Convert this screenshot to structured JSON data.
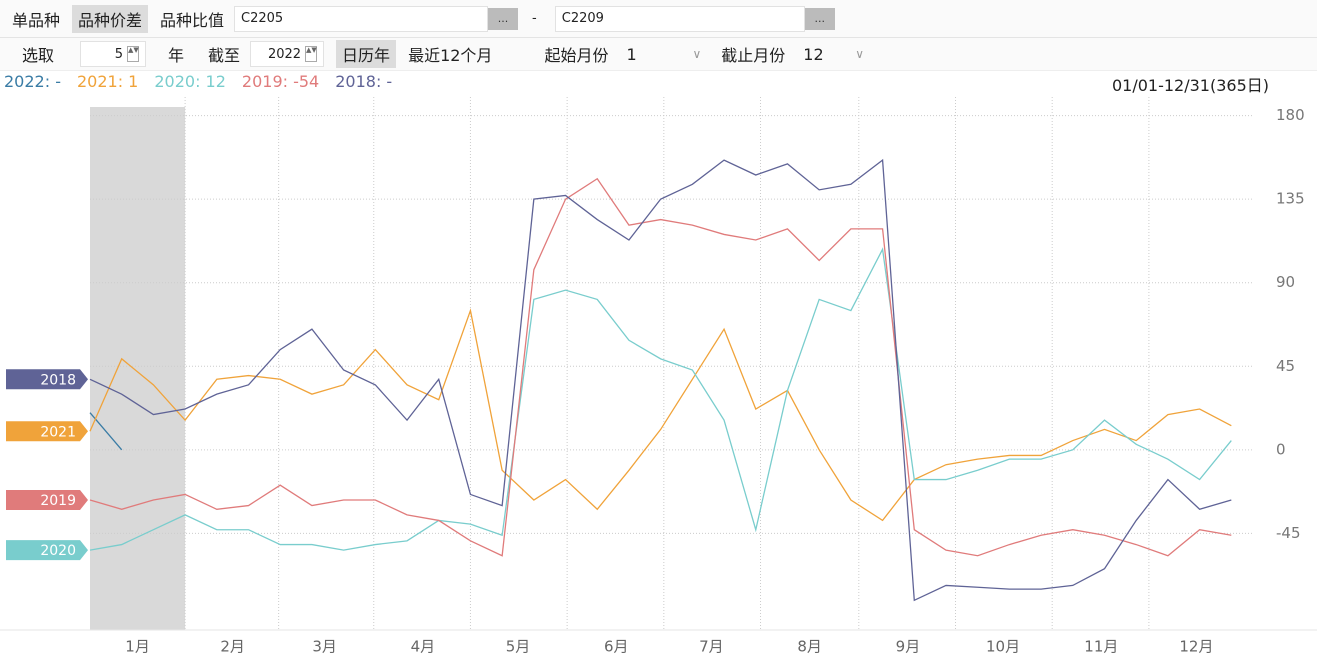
{
  "toolbar": {
    "tabs": [
      "单品种",
      "品种价差",
      "品种比值"
    ],
    "code1": "C2205",
    "more": "...",
    "dash": "-",
    "code2": "C2209",
    "select_label": "选取",
    "years": "5",
    "year_unit": "年",
    "until_label": "截至",
    "until_year": "2022",
    "calendar": "日历年",
    "recent": "最近12个月",
    "start_month_label": "起始月份",
    "start_month": "1",
    "end_month_label": "截止月份",
    "end_month": "12"
  },
  "chart_data": {
    "type": "line",
    "legend_labels": [
      "2022: -",
      "2021: 1",
      "2020: 12",
      "2019: -54",
      "2018: -"
    ],
    "range_label": "01/01-12/31(365日)",
    "x": [
      1,
      11,
      21,
      31,
      41,
      51,
      61,
      71,
      81,
      91,
      101,
      111,
      121,
      131,
      141,
      151,
      161,
      171,
      181,
      191,
      201,
      211,
      221,
      231,
      241,
      251,
      261,
      271,
      281,
      291,
      301,
      311,
      321,
      331,
      341,
      351,
      361
    ],
    "xlim": [
      1,
      365
    ],
    "xticks": [
      {
        "value": 16,
        "label": "1月"
      },
      {
        "value": 46,
        "label": "2月"
      },
      {
        "value": 75,
        "label": "3月"
      },
      {
        "value": 106,
        "label": "4月"
      },
      {
        "value": 136,
        "label": "5月"
      },
      {
        "value": 167,
        "label": "6月"
      },
      {
        "value": 197,
        "label": "7月"
      },
      {
        "value": 228,
        "label": "8月"
      },
      {
        "value": 259,
        "label": "9月"
      },
      {
        "value": 289,
        "label": "10月"
      },
      {
        "value": 320,
        "label": "11月"
      },
      {
        "value": 350,
        "label": "12月"
      }
    ],
    "ylim": [
      -97,
      190
    ],
    "yticks": [
      180,
      135,
      90,
      45,
      0,
      -45
    ],
    "grid": true,
    "series": [
      {
        "name": "2022",
        "color": "#3a7ca5",
        "flag": false,
        "values": [
          20,
          0,
          null,
          null,
          null,
          null,
          null,
          null,
          null,
          null,
          null,
          null,
          null,
          null,
          null,
          null,
          null,
          null,
          null,
          null,
          null,
          null,
          null,
          null,
          null,
          null,
          null,
          null,
          null,
          null,
          null,
          null,
          null,
          null,
          null,
          null,
          null
        ]
      },
      {
        "name": "2021",
        "color": "#f0a33a",
        "flag": true,
        "values": [
          10,
          49,
          35,
          16,
          38,
          40,
          38,
          30,
          35,
          54,
          35,
          27,
          75,
          -11,
          -27,
          -16,
          -32,
          -11,
          11,
          38,
          65,
          22,
          32,
          0,
          -27,
          -38,
          -16,
          -8,
          -5,
          -3,
          -3,
          5,
          11,
          5,
          19,
          22,
          13
        ]
      },
      {
        "name": "2020",
        "color": "#79cdcd",
        "flag": true,
        "values": [
          -54,
          -51,
          -43,
          -35,
          -43,
          -43,
          -51,
          -51,
          -54,
          -51,
          -49,
          -38,
          -40,
          -46,
          81,
          86,
          81,
          59,
          49,
          43,
          16,
          -43,
          32,
          81,
          75,
          108,
          -16,
          -16,
          -11,
          -5,
          -5,
          0,
          16,
          3,
          -5,
          -16,
          5
        ]
      },
      {
        "name": "2019",
        "color": "#e07b7b",
        "flag": true,
        "values": [
          -27,
          -32,
          -27,
          -24,
          -32,
          -30,
          -19,
          -30,
          -27,
          -27,
          -35,
          -38,
          -49,
          -57,
          97,
          135,
          146,
          121,
          124,
          121,
          116,
          113,
          119,
          102,
          119,
          119,
          -43,
          -54,
          -57,
          -51,
          -46,
          -43,
          -46,
          -51,
          -57,
          -43,
          -46
        ]
      },
      {
        "name": "2018",
        "color": "#5f6396",
        "flag": true,
        "values": [
          38,
          30,
          19,
          22,
          30,
          35,
          54,
          65,
          43,
          35,
          16,
          38,
          -24,
          -30,
          135,
          137,
          124,
          113,
          135,
          143,
          156,
          148,
          154,
          140,
          143,
          156,
          -81,
          -73,
          -74,
          -75,
          -75,
          -73,
          -64,
          -38,
          -16,
          -32,
          -27
        ]
      }
    ]
  }
}
